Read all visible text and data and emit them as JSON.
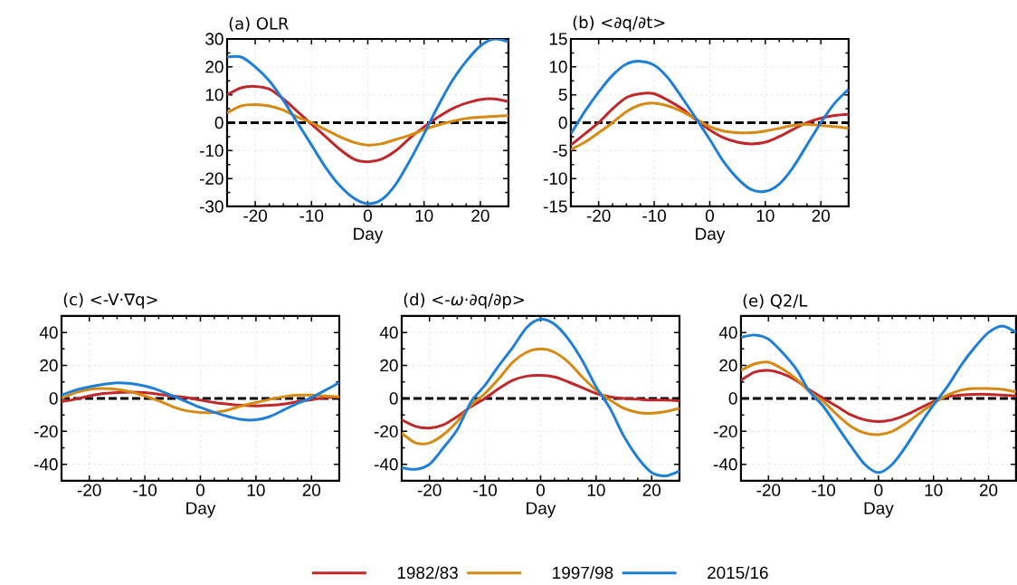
{
  "chart_data": [
    {
      "type": "line",
      "title": "(a) OLR",
      "xlabel": "Day",
      "xlim": [
        -25,
        25
      ],
      "xticks": [
        -20,
        -10,
        0,
        10,
        20
      ],
      "ylim": [
        -30,
        30
      ],
      "yticks": [
        -30,
        -20,
        -10,
        0,
        10,
        20,
        30
      ],
      "grid": true,
      "x": [
        -25,
        -22.5,
        -20,
        -17.5,
        -15,
        -12.5,
        -10,
        -7.5,
        -5,
        -2.5,
        0,
        2.5,
        5,
        7.5,
        10,
        12.5,
        15,
        17.5,
        20,
        22.5,
        25
      ],
      "ref_lines": [
        {
          "axis": "y",
          "value": 0,
          "color": "#000000",
          "line_style": "dashed"
        }
      ],
      "series": [
        {
          "color": "#c0282b",
          "values": [
            10,
            12.5,
            13,
            12,
            8.5,
            4,
            -0.5,
            -5,
            -9.5,
            -13,
            -14,
            -13,
            -10,
            -5.5,
            -1.5,
            2,
            5,
            7,
            8.3,
            8.5,
            7.5
          ]
        },
        {
          "color": "#d68a12",
          "values": [
            3.5,
            6,
            6.5,
            6,
            4.5,
            2,
            0,
            -2.5,
            -5,
            -7,
            -8,
            -7.5,
            -6,
            -4.5,
            -2.5,
            -0.8,
            0.5,
            1.5,
            2,
            2.3,
            2.5
          ]
        },
        {
          "color": "#1f7fd6",
          "values": [
            23.5,
            23.5,
            20,
            15,
            8,
            0,
            -8,
            -16,
            -22.5,
            -27,
            -29,
            -27.5,
            -22,
            -13.5,
            -4,
            6,
            15,
            22,
            27.5,
            30,
            29
          ]
        }
      ]
    },
    {
      "type": "line",
      "title": "(b) <∂q/∂t>",
      "xlabel": "Day",
      "xlim": [
        -25,
        25
      ],
      "xticks": [
        -20,
        -10,
        0,
        10,
        20
      ],
      "ylim": [
        -15,
        15
      ],
      "yticks": [
        -15,
        -10,
        -5,
        0,
        5,
        10,
        15
      ],
      "grid": true,
      "x": [
        -25,
        -22.5,
        -20,
        -17.5,
        -15,
        -12.5,
        -10,
        -7.5,
        -5,
        -2.5,
        0,
        2.5,
        5,
        7.5,
        10,
        12.5,
        15,
        17.5,
        20,
        22.5,
        25
      ],
      "ref_lines": [
        {
          "axis": "y",
          "value": 0,
          "color": "#000000",
          "line_style": "dashed"
        }
      ],
      "series": [
        {
          "color": "#c0282b",
          "values": [
            -4,
            -2,
            0,
            2.5,
            4.5,
            5.2,
            5.2,
            4,
            2.5,
            0.5,
            -1.3,
            -2.7,
            -3.5,
            -3.8,
            -3.5,
            -2.5,
            -1.2,
            0,
            0.8,
            1.3,
            1.5
          ]
        },
        {
          "color": "#d68a12",
          "values": [
            -4.8,
            -3.5,
            -1.8,
            0,
            2,
            3.2,
            3.5,
            3,
            2,
            0.7,
            -0.7,
            -1.5,
            -1.8,
            -1.8,
            -1.5,
            -1,
            -0.5,
            -0.3,
            -0.5,
            -0.7,
            -1
          ]
        },
        {
          "color": "#1f7fd6",
          "values": [
            -2,
            2,
            5.5,
            8.5,
            10.5,
            11,
            10.3,
            8,
            4.5,
            0.8,
            -3,
            -7,
            -10,
            -12,
            -12.3,
            -11,
            -8,
            -4,
            0,
            3.5,
            6
          ]
        }
      ]
    },
    {
      "type": "line",
      "title": "(c) <-V·∇q>",
      "xlabel": "Day",
      "xlim": [
        -25,
        25
      ],
      "xticks": [
        -20,
        -10,
        0,
        10,
        20
      ],
      "ylim": [
        -50,
        50
      ],
      "yticks": [
        -40,
        -20,
        0,
        20,
        40
      ],
      "grid": true,
      "x": [
        -25,
        -22.5,
        -20,
        -17.5,
        -15,
        -12.5,
        -10,
        -7.5,
        -5,
        -2.5,
        0,
        2.5,
        5,
        7.5,
        10,
        12.5,
        15,
        17.5,
        20,
        22.5,
        25
      ],
      "ref_lines": [
        {
          "axis": "y",
          "value": 0,
          "color": "#000000",
          "line_style": "dashed"
        }
      ],
      "series": [
        {
          "color": "#c0282b",
          "values": [
            -2,
            -0.5,
            1.5,
            3,
            3.5,
            3.8,
            3.5,
            2.5,
            1.5,
            0.5,
            -1,
            -2.5,
            -3.5,
            -4.2,
            -4.5,
            -4.2,
            -3.5,
            -2,
            -0.8,
            0.5,
            1
          ]
        },
        {
          "color": "#d68a12",
          "values": [
            0,
            3.5,
            5.5,
            6,
            5.5,
            4,
            1.5,
            -1.5,
            -5,
            -7.5,
            -8.5,
            -8.5,
            -7,
            -4.5,
            -2.5,
            -0.5,
            1,
            2,
            2,
            1.5,
            1
          ]
        },
        {
          "color": "#1f7fd6",
          "values": [
            2,
            5,
            7,
            8.5,
            9.5,
            9,
            7.5,
            5,
            1.5,
            -2,
            -5.5,
            -8.5,
            -11,
            -12.8,
            -13,
            -11,
            -7,
            -3,
            0.5,
            5,
            9.5
          ]
        }
      ]
    },
    {
      "type": "line",
      "title": "(d) <-*ω*·∂q/∂p>",
      "xlabel": "Day",
      "xlim": [
        -25,
        25
      ],
      "xticks": [
        -20,
        -10,
        0,
        10,
        20
      ],
      "ylim": [
        -50,
        50
      ],
      "yticks": [
        -40,
        -20,
        0,
        20,
        40
      ],
      "grid": true,
      "legend": "bottom",
      "x": [
        -25,
        -22.5,
        -20,
        -17.5,
        -15,
        -12.5,
        -10,
        -7.5,
        -5,
        -2.5,
        0,
        2.5,
        5,
        7.5,
        10,
        12.5,
        15,
        17.5,
        20,
        22.5,
        25
      ],
      "ref_lines": [
        {
          "axis": "y",
          "value": 0,
          "color": "#000000",
          "line_style": "dashed"
        }
      ],
      "series": [
        {
          "name": "1982/83",
          "color": "#c0282b",
          "values": [
            -13,
            -17,
            -18,
            -16,
            -11,
            -5,
            0,
            6,
            11,
            13.5,
            14,
            13,
            10,
            6.5,
            3,
            1,
            0,
            -0.5,
            -1,
            -1,
            -1.5
          ]
        },
        {
          "name": "1997/98",
          "color": "#d68a12",
          "values": [
            -21,
            -27,
            -27,
            -22,
            -14,
            -4,
            3,
            12,
            22,
            28,
            30,
            28,
            22,
            13,
            5,
            -1,
            -6,
            -8.5,
            -9,
            -8,
            -6
          ]
        },
        {
          "name": "2015/16",
          "color": "#1f7fd6",
          "values": [
            -42,
            -43,
            -40,
            -30,
            -19,
            -2,
            8,
            20,
            31,
            43,
            48,
            45,
            36,
            23,
            7,
            -6,
            -23,
            -36,
            -45,
            -47,
            -44
          ]
        }
      ]
    },
    {
      "type": "line",
      "title": "(e) Q2/L",
      "xlabel": "Day",
      "xlim": [
        -25,
        25
      ],
      "xticks": [
        -20,
        -10,
        0,
        10,
        20
      ],
      "ylim": [
        -50,
        50
      ],
      "yticks": [
        -40,
        -20,
        0,
        20,
        40
      ],
      "grid": true,
      "x": [
        -25,
        -22.5,
        -20,
        -17.5,
        -15,
        -12.5,
        -10,
        -7.5,
        -5,
        -2.5,
        0,
        2.5,
        5,
        7.5,
        10,
        12.5,
        15,
        17.5,
        20,
        22.5,
        25
      ],
      "ref_lines": [
        {
          "axis": "y",
          "value": 0,
          "color": "#000000",
          "line_style": "dashed"
        }
      ],
      "series": [
        {
          "color": "#c0282b",
          "values": [
            11,
            16,
            17,
            15,
            11,
            5,
            0,
            -5,
            -10,
            -13,
            -14,
            -13,
            -10,
            -6,
            -2,
            1,
            2,
            2.5,
            2.5,
            2,
            1.5
          ]
        },
        {
          "color": "#d68a12",
          "values": [
            17,
            21,
            22,
            18,
            12,
            4,
            -2,
            -10,
            -17,
            -21,
            -22,
            -20,
            -15,
            -9,
            -3,
            2,
            5,
            6,
            6,
            5.5,
            4
          ]
        },
        {
          "color": "#1f7fd6",
          "values": [
            37,
            38.5,
            36,
            28,
            18,
            4,
            -5,
            -17,
            -29,
            -40,
            -45,
            -40,
            -29,
            -16,
            -4,
            7,
            20,
            31,
            40,
            44,
            40
          ]
        }
      ]
    }
  ]
}
